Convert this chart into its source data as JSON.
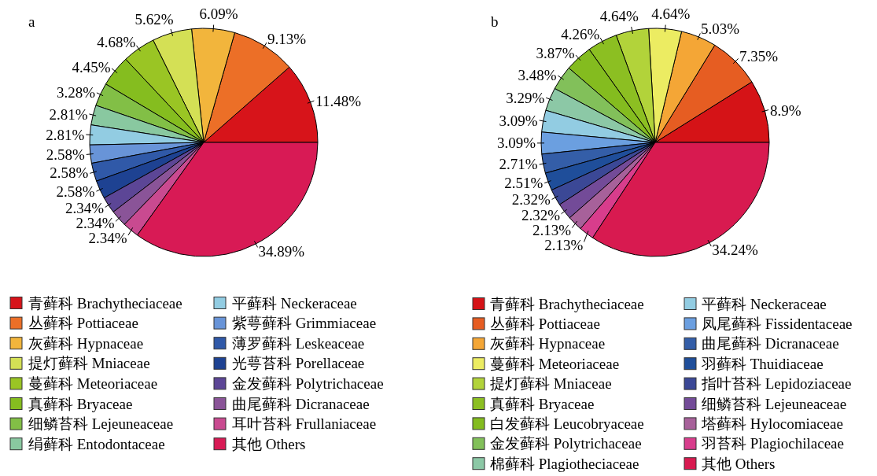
{
  "chart_data": [
    {
      "type": "pie",
      "title": "a",
      "legend": "bottom",
      "categories": [
        "青藓科 Brachytheciaceae",
        "丛藓科 Pottiaceae",
        "灰藓科 Hypnaceae",
        "提灯藓科 Mniaceae",
        "蔓藓科 Meteoriaceae",
        "真藓科 Bryaceae",
        "细鳞苔科 Lejeuneaceae",
        "绢藓科 Entodontaceae",
        "平藓科 Neckeraceae",
        "紫萼藓科 Grimmiaceae",
        "薄罗藓科 Leskeaceae",
        "光萼苔科 Porellaceae",
        "金发藓科 Polytrichaceae",
        "曲尾藓科 Dicranaceae",
        "耳叶苔科 Frullaniaceae",
        "其他 Others"
      ],
      "values": [
        11.48,
        9.13,
        6.09,
        5.62,
        4.68,
        4.45,
        3.28,
        2.81,
        2.81,
        2.58,
        2.58,
        2.58,
        2.34,
        2.34,
        2.34,
        34.89
      ],
      "value_labels": [
        "11.48%",
        "9.13%",
        "6.09%",
        "5.62%",
        "4.68%",
        "4.45%",
        "3.28%",
        "2.81%",
        "2.81%",
        "2.58%",
        "2.58%",
        "2.58%",
        "2.34%",
        "2.34%",
        "2.34%",
        "34.89%"
      ],
      "colors": [
        "#d7141a",
        "#ec6f27",
        "#f2b53c",
        "#d4e055",
        "#9ac524",
        "#85bd1f",
        "#82bf46",
        "#89c8a0",
        "#92cce2",
        "#6894d8",
        "#3059a8",
        "#1e4292",
        "#5c4696",
        "#8a5498",
        "#c94a90",
        "#d81a55"
      ]
    },
    {
      "type": "pie",
      "title": "b",
      "legend": "bottom",
      "categories": [
        "青藓科 Brachytheciaceae",
        "丛藓科 Pottiaceae",
        "灰藓科 Hypnaceae",
        "蔓藓科 Meteoriaceae",
        "提灯藓科 Mniaceae",
        "真藓科 Bryaceae",
        "白发藓科 Leucobryaceae",
        "金发藓科 Polytrichaceae",
        "棉藓科 Plagiotheciaceae",
        "平藓科 Neckeraceae",
        "凤尾藓科 Fissidentaceae",
        "曲尾藓科 Dicranaceae",
        "羽藓科 Thuidiaceae",
        "指叶苔科 Lepidoziaceae",
        "细鳞苔科 Lejeuneaceae",
        "塔藓科 Hylocomiaceae",
        "羽苔科 Plagiochilaceae",
        "其他 Others"
      ],
      "values": [
        8.9,
        7.35,
        5.03,
        4.64,
        4.64,
        4.26,
        3.87,
        3.48,
        3.29,
        3.09,
        3.09,
        2.71,
        2.51,
        2.32,
        2.32,
        2.13,
        2.13,
        34.24
      ],
      "value_labels": [
        "8.9%",
        "7.35%",
        "5.03%",
        "4.64%",
        "4.64%",
        "4.26%",
        "3.87%",
        "3.48%",
        "3.29%",
        "3.09%",
        "3.09%",
        "2.71%",
        "2.51%",
        "2.32%",
        "2.32%",
        "2.13%",
        "2.13%",
        "34.24%"
      ],
      "colors": [
        "#d51317",
        "#e65d22",
        "#f4a636",
        "#ecec62",
        "#b2d33a",
        "#8cbf22",
        "#84bc1f",
        "#82c05a",
        "#8cc8a6",
        "#92cce2",
        "#6b9fe0",
        "#345ea8",
        "#1f4e9a",
        "#3b4896",
        "#734b98",
        "#a7619a",
        "#d83d8c",
        "#d81a50"
      ]
    }
  ]
}
